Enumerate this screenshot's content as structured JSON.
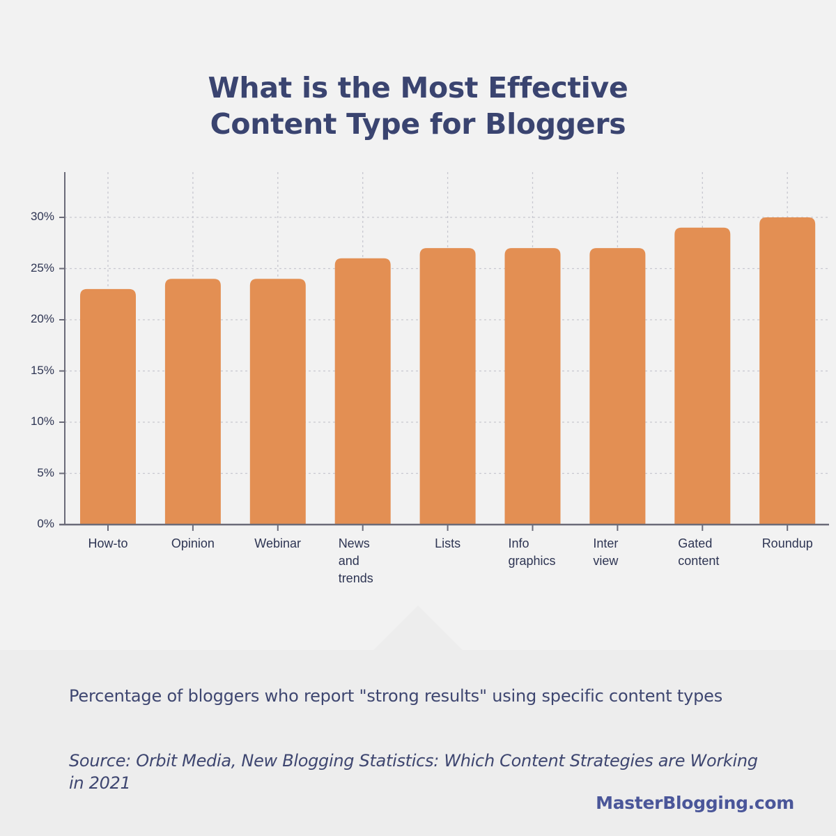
{
  "header": {
    "title_line1": "What is the Most Effective",
    "title_line2": "Content Type for Bloggers"
  },
  "chart_data": {
    "type": "bar",
    "title": "What is the Most Effective Content Type for Bloggers",
    "xlabel": "",
    "ylabel": "",
    "categories": [
      "How-to",
      "Opinion",
      "Webinar",
      "News and trends",
      "Lists",
      "Info graphics",
      "Inter view",
      "Gated content",
      "Roundup"
    ],
    "category_display": [
      "How-to",
      "Opinion",
      "Webinar",
      "News\nand\ntrends",
      "Lists",
      "Info\ngraphics",
      "Inter\nview",
      "Gated\ncontent",
      "Roundup"
    ],
    "values": [
      23,
      24,
      24,
      26,
      27,
      27,
      27,
      29,
      30
    ],
    "unit": "%",
    "ylim": [
      0,
      34
    ],
    "yticks": [
      0,
      5,
      10,
      15,
      20,
      25,
      30
    ],
    "ytick_labels": [
      "0%",
      "5%",
      "10%",
      "15%",
      "20%",
      "25%",
      "30%"
    ],
    "grid": true,
    "legend": null,
    "bar_color": "#e38f53"
  },
  "footer": {
    "subtitle": "Percentage of bloggers who report \"strong results\" using specific content types",
    "source": "Source: Orbit Media, New Blogging Statistics: Which Content Strategies are Working in 2021",
    "brand": "MasterBlogging.com"
  },
  "colors": {
    "background": "#f2f2f2",
    "panel": "#ededed",
    "title": "#3a4470",
    "text": "#2e3553",
    "bar": "#e38f53",
    "brand": "#4a5699",
    "axis": "#6b6b78",
    "grid": "#c8c8d0"
  }
}
